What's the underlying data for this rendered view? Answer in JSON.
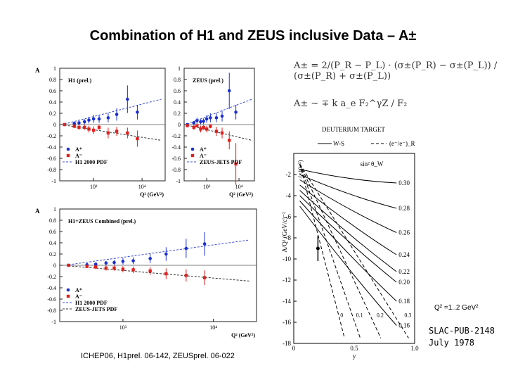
{
  "slide": {
    "title": "Combination of H1 and ZEUS inclusive Data – A±",
    "footer": "ICHEP06, H1prel. 06-142, ZEUSprel. 06-022",
    "q2_note": "Q² =1..2 GeV²",
    "slac_line1": "SLAC-PUB-2148",
    "slac_line2": "July 1978",
    "formula1": "A± = 2/(P_R − P_L) · (σ±(P_R) − σ±(P_L)) / (σ±(P_R) + σ±(P_L))",
    "formula2": "A± ∼ ∓ k a_e F₂^γZ / F₂"
  },
  "colors": {
    "a_plus": "#1a2fd0",
    "a_minus": "#e0201e",
    "pdf_plus": "#3b4fd8",
    "pdf_minus": "#333333"
  },
  "chart_data": [
    {
      "id": "h1",
      "type": "scatter",
      "label": "H1 (prel.)",
      "xlabel": "Q² (GeV²)",
      "ylabel": "A",
      "ylim": [
        -1,
        1
      ],
      "yticks": [
        "1",
        "0.8",
        "0.6",
        "0.4",
        "0.2",
        "0",
        "-0.2",
        "-0.4",
        "-0.6",
        "-0.8",
        "-1"
      ],
      "xticks": [
        "10³",
        "10⁴"
      ],
      "legend": [
        "A⁺",
        "A⁻",
        "H1 2000 PDF"
      ],
      "series": [
        {
          "name": "A+",
          "points": [
            [
              250,
              0.0
            ],
            [
              400,
              0.02
            ],
            [
              500,
              0.03
            ],
            [
              650,
              0.05
            ],
            [
              800,
              0.08
            ],
            [
              1000,
              0.1
            ],
            [
              1300,
              0.1
            ],
            [
              2000,
              0.12
            ],
            [
              3000,
              0.18
            ],
            [
              5000,
              0.45
            ],
            [
              8000,
              0.22
            ]
          ]
        },
        {
          "name": "A-",
          "points": [
            [
              250,
              0.0
            ],
            [
              400,
              -0.03
            ],
            [
              500,
              -0.05
            ],
            [
              650,
              -0.05
            ],
            [
              800,
              -0.08
            ],
            [
              1000,
              -0.1
            ],
            [
              1300,
              -0.05
            ],
            [
              2000,
              -0.15
            ],
            [
              3000,
              -0.12
            ],
            [
              5000,
              -0.15
            ],
            [
              8000,
              -0.25
            ]
          ]
        }
      ]
    },
    {
      "id": "zeus",
      "type": "scatter",
      "label": "ZEUS (prel.)",
      "xlabel": "Q² (GeV²)",
      "ylabel": "",
      "ylim": [
        -1,
        1
      ],
      "yticks": [
        "1",
        "0.8",
        "0.6",
        "0.4",
        "0.2",
        "0",
        "-0.2",
        "-0.4",
        "-0.6",
        "-0.8",
        "-1"
      ],
      "xticks": [
        "10³",
        "10⁴"
      ],
      "legend": [
        "A⁺",
        "A⁻",
        "ZEUS-JETS PDF"
      ],
      "series": [
        {
          "name": "A+",
          "points": [
            [
              250,
              0.0
            ],
            [
              400,
              0.03
            ],
            [
              500,
              0.07
            ],
            [
              650,
              0.05
            ],
            [
              800,
              0.06
            ],
            [
              1000,
              0.1
            ],
            [
              1300,
              0.12
            ],
            [
              2000,
              0.12
            ],
            [
              3000,
              0.15
            ],
            [
              5000,
              0.6
            ],
            [
              8000,
              0.22
            ]
          ]
        },
        {
          "name": "A-",
          "points": [
            [
              250,
              -0.02
            ],
            [
              400,
              -0.05
            ],
            [
              500,
              -0.02
            ],
            [
              650,
              -0.08
            ],
            [
              800,
              -0.05
            ],
            [
              1000,
              -0.08
            ],
            [
              1300,
              -0.03
            ],
            [
              2000,
              -0.12
            ],
            [
              3000,
              -0.15
            ],
            [
              5000,
              -0.28
            ],
            [
              8000,
              -0.7
            ]
          ]
        }
      ]
    },
    {
      "id": "combined",
      "type": "scatter",
      "label": "H1+ZEUS Combined (prel.)",
      "xlabel": "Q² (GeV²)",
      "ylabel": "A",
      "ylim": [
        -1,
        1
      ],
      "yticks": [
        "1",
        "0.8",
        "0.6",
        "0.4",
        "0.2",
        "0",
        "-0.2",
        "-0.4",
        "-0.6",
        "-0.8",
        "-1"
      ],
      "xticks": [
        "10³",
        "10⁴"
      ],
      "legend": [
        "A⁺",
        "A⁻",
        "H1 2000 PDF",
        "ZEUS-JETS PDF"
      ],
      "series": [
        {
          "name": "A+",
          "points": [
            [
              250,
              0.0
            ],
            [
              400,
              0.01
            ],
            [
              500,
              0.02
            ],
            [
              650,
              0.04
            ],
            [
              800,
              0.05
            ],
            [
              1000,
              0.07
            ],
            [
              1300,
              0.08
            ],
            [
              2000,
              0.12
            ],
            [
              3000,
              0.2
            ],
            [
              5000,
              0.3
            ],
            [
              8000,
              0.38
            ]
          ]
        },
        {
          "name": "A-",
          "points": [
            [
              250,
              0.0
            ],
            [
              400,
              -0.02
            ],
            [
              500,
              -0.03
            ],
            [
              650,
              -0.05
            ],
            [
              800,
              -0.05
            ],
            [
              1000,
              -0.07
            ],
            [
              1300,
              -0.08
            ],
            [
              2000,
              -0.1
            ],
            [
              3000,
              -0.15
            ],
            [
              5000,
              -0.18
            ],
            [
              8000,
              -0.22
            ]
          ]
        }
      ]
    },
    {
      "id": "slac",
      "type": "line",
      "title": "DEUTERIUM TARGET",
      "xlabel": "y",
      "ylabel": "A/Q² (GeV/c)⁻²",
      "ylabel_scale": "(×10⁻⁵)",
      "xlim": [
        0,
        1
      ],
      "ylim": [
        -18,
        0
      ],
      "xticks": [
        "0",
        "0.5",
        "1.0"
      ],
      "yticks": [
        "-2",
        "-4",
        "-6",
        "-8",
        "-10",
        "-12",
        "-14",
        "-16",
        "-18"
      ],
      "legend": [
        "W-S",
        "(e⁻/e⁻)_R"
      ],
      "curve_param": "sin² θ_W",
      "solid_curves": [
        {
          "label": "0.30",
          "y0": -1.5,
          "y1": -2.8
        },
        {
          "label": "0.28",
          "y0": -2.0,
          "y1": -5.2
        },
        {
          "label": "0.26",
          "y0": -2.5,
          "y1": -7.5
        },
        {
          "label": "0.24",
          "y0": -3.0,
          "y1": -9.6
        },
        {
          "label": "0.22",
          "y0": -3.5,
          "y1": -11.2
        },
        {
          "label": "0.20",
          "y0": -4.0,
          "y1": -12.2
        },
        {
          "label": "0.18",
          "y0": -4.5,
          "y1": -14.0
        },
        {
          "label": "0.16",
          "y0": -5.0,
          "y1": -16.3
        }
      ],
      "dashed_curves": [
        {
          "label": "0",
          "x_end": 0.42
        },
        {
          "label": "0.1",
          "x_end": 0.55
        },
        {
          "label": "0.2",
          "x_end": 0.72
        },
        {
          "label": "0.3",
          "x_end": 0.95
        }
      ],
      "data_point": {
        "x": 0.2,
        "y": -9.0,
        "err": 1.2
      }
    }
  ]
}
